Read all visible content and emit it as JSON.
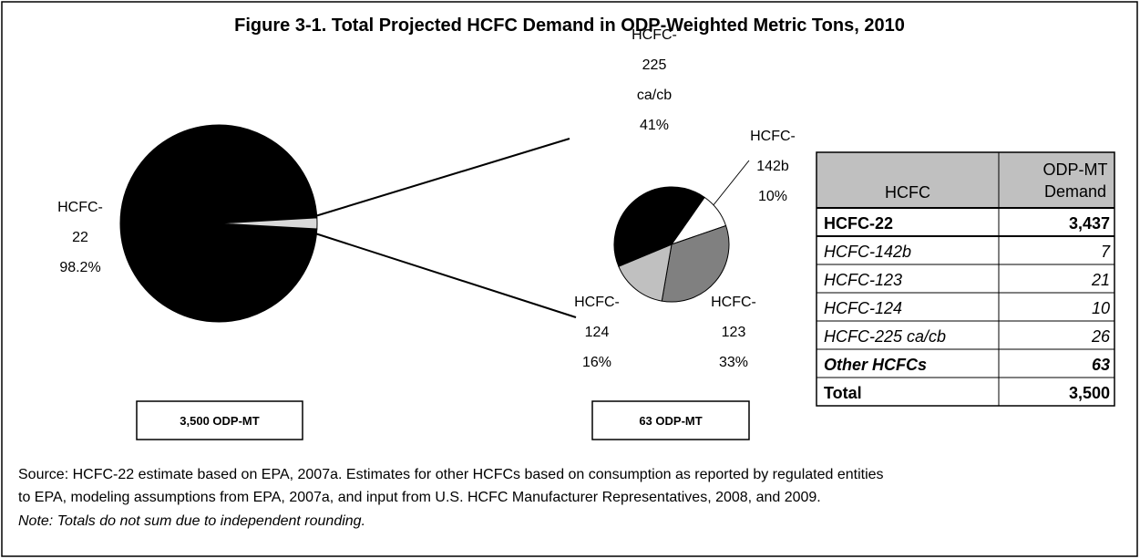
{
  "title": "Figure 3-1.  Total Projected HCFC Demand in ODP-Weighted Metric Tons, 2010",
  "chart_data": [
    {
      "type": "pie",
      "categories": [
        "HCFC-22",
        null
      ],
      "values": [
        98.2,
        1.8
      ],
      "value_labels": [
        "98.2%",
        null
      ],
      "colors": [
        "#000000",
        "#d9d9d9"
      ],
      "total_label": "3,500 ODP-MT"
    },
    {
      "type": "pie",
      "categories": [
        "HCFC-142b",
        "HCFC-123",
        "HCFC-124",
        "HCFC-225 ca/cb"
      ],
      "values": [
        10,
        33,
        16,
        41
      ],
      "value_labels": [
        "10%",
        "33%",
        "16%",
        "41%"
      ],
      "colors": [
        "#ffffff",
        "#808080",
        "#c0c0c0",
        "#000000"
      ],
      "total_label": "63 ODP-MT"
    }
  ],
  "table": {
    "header": [
      "HCFC",
      "ODP-MT Demand"
    ],
    "rows": [
      [
        "HCFC-22",
        "3,437"
      ],
      [
        "HCFC-142b",
        "7"
      ],
      [
        "HCFC-123",
        "21"
      ],
      [
        "HCFC-124",
        "10"
      ],
      [
        "HCFC-225 ca/cb",
        "26"
      ],
      [
        "Other HCFCs",
        "63"
      ],
      [
        "Total",
        "3,500"
      ]
    ]
  },
  "source": [
    "Source: HCFC-22 estimate based on EPA, 2007a. Estimates for other HCFCs based on consumption as reported by regulated entities",
    "to EPA, modeling assumptions from EPA, 2007a, and input from U.S. HCFC Manufacturer Representatives, 2008, and 2009."
  ],
  "note": "Note: Totals do not sum due to independent rounding."
}
